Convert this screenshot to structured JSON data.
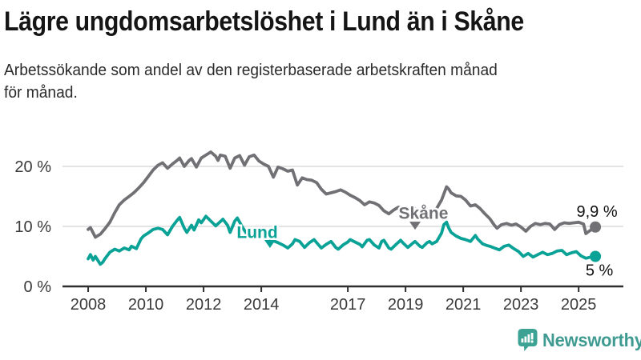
{
  "header": {
    "title": "Lägre ungdomsarbetslöshet i Lund än i Skåne",
    "subtitle_lines": [
      "Arbetssökande som andel av den registerbaserade arbetskraften månad",
      "för månad."
    ]
  },
  "footer": {
    "brand": "Newsworthy",
    "logo_icon": "newsworthy-chart-bubble-icon",
    "icon_color": "#3ba294",
    "brand_color": "#3f9a91"
  },
  "colors": {
    "skane_line": "#707075",
    "lund_line": "#0aa296",
    "gridline": "#dcdcdc",
    "axis": "#2e2e2e",
    "tick_text": "#3a3a3a"
  },
  "chart_data": {
    "type": "line",
    "title": "Lägre ungdomsarbetslöshet i Lund än i Skåne",
    "xlabel": "",
    "ylabel": "",
    "grid": "horizontal",
    "legend_position": "inline-labels",
    "x_axis": {
      "range": [
        2007.11,
        2026.55
      ],
      "tick_values": [
        2008,
        2010,
        2012,
        2014,
        2017,
        2019,
        2021,
        2023,
        2025
      ],
      "tick_labels": [
        "2008",
        "2010",
        "2012",
        "2014",
        "2017",
        "2019",
        "2021",
        "2023",
        "2025"
      ]
    },
    "y_axis": {
      "unit": "%",
      "range": [
        0,
        25
      ],
      "tick_values": [
        0,
        10,
        20
      ],
      "tick_labels": [
        "0 %",
        "10 %",
        "20 %"
      ]
    },
    "series": [
      {
        "id": "skane",
        "name": "Skåne",
        "color": "#707075",
        "end_label": "9,9 %",
        "end_value": 9.9,
        "end_label_position": "above",
        "annotation": {
          "text": "Skåne",
          "text_year": 2019.62,
          "text_value": 11.3,
          "caret_year": 2019.33,
          "caret_tip_value": 9.45
        },
        "points": [
          [
            2008.0,
            9.5
          ],
          [
            2008.08,
            9.8
          ],
          [
            2008.25,
            8.2
          ],
          [
            2008.42,
            8.7
          ],
          [
            2008.58,
            9.6
          ],
          [
            2008.75,
            10.7
          ],
          [
            2008.92,
            12.3
          ],
          [
            2009.08,
            13.6
          ],
          [
            2009.25,
            14.4
          ],
          [
            2009.42,
            15.0
          ],
          [
            2009.58,
            15.6
          ],
          [
            2009.75,
            16.4
          ],
          [
            2009.92,
            17.3
          ],
          [
            2010.08,
            18.3
          ],
          [
            2010.25,
            19.4
          ],
          [
            2010.42,
            20.2
          ],
          [
            2010.58,
            20.6
          ],
          [
            2010.75,
            19.7
          ],
          [
            2010.92,
            20.4
          ],
          [
            2011.08,
            21.0
          ],
          [
            2011.17,
            21.4
          ],
          [
            2011.33,
            20.0
          ],
          [
            2011.5,
            21.0
          ],
          [
            2011.58,
            21.3
          ],
          [
            2011.75,
            19.9
          ],
          [
            2011.92,
            21.4
          ],
          [
            2012.08,
            21.9
          ],
          [
            2012.25,
            22.4
          ],
          [
            2012.42,
            21.7
          ],
          [
            2012.5,
            21.0
          ],
          [
            2012.58,
            21.9
          ],
          [
            2012.75,
            21.7
          ],
          [
            2012.92,
            19.7
          ],
          [
            2013.08,
            21.4
          ],
          [
            2013.25,
            21.8
          ],
          [
            2013.42,
            20.2
          ],
          [
            2013.58,
            21.6
          ],
          [
            2013.75,
            21.9
          ],
          [
            2013.92,
            20.9
          ],
          [
            2014.08,
            20.4
          ],
          [
            2014.25,
            20.0
          ],
          [
            2014.42,
            18.2
          ],
          [
            2014.58,
            19.9
          ],
          [
            2014.75,
            19.6
          ],
          [
            2014.92,
            19.2
          ],
          [
            2015.08,
            19.4
          ],
          [
            2015.25,
            16.9
          ],
          [
            2015.42,
            18.1
          ],
          [
            2015.58,
            17.8
          ],
          [
            2015.75,
            17.7
          ],
          [
            2015.92,
            17.3
          ],
          [
            2016.08,
            16.2
          ],
          [
            2016.25,
            15.4
          ],
          [
            2016.42,
            15.6
          ],
          [
            2016.58,
            15.8
          ],
          [
            2016.75,
            16.1
          ],
          [
            2016.92,
            15.7
          ],
          [
            2017.08,
            15.2
          ],
          [
            2017.25,
            14.8
          ],
          [
            2017.42,
            14.3
          ],
          [
            2017.58,
            13.6
          ],
          [
            2017.75,
            14.1
          ],
          [
            2017.92,
            13.9
          ],
          [
            2018.08,
            13.5
          ],
          [
            2018.25,
            12.6
          ],
          [
            2018.42,
            12.1
          ],
          [
            2018.58,
            12.7
          ],
          [
            2018.75,
            13.2
          ],
          [
            2018.92,
            13.0
          ],
          [
            2019.08,
            12.8
          ],
          [
            2019.25,
            13.2
          ],
          [
            2019.42,
            12.7
          ],
          [
            2019.58,
            13.0
          ],
          [
            2019.75,
            12.8
          ],
          [
            2019.92,
            12.6
          ],
          [
            2020.08,
            13.0
          ],
          [
            2020.25,
            14.4
          ],
          [
            2020.42,
            16.6
          ],
          [
            2020.5,
            16.2
          ],
          [
            2020.58,
            15.6
          ],
          [
            2020.75,
            15.1
          ],
          [
            2020.92,
            15.0
          ],
          [
            2021.08,
            14.4
          ],
          [
            2021.25,
            13.4
          ],
          [
            2021.42,
            13.6
          ],
          [
            2021.58,
            13.0
          ],
          [
            2021.75,
            12.1
          ],
          [
            2021.92,
            11.3
          ],
          [
            2022.08,
            10.2
          ],
          [
            2022.17,
            9.7
          ],
          [
            2022.33,
            10.3
          ],
          [
            2022.5,
            10.5
          ],
          [
            2022.67,
            10.2
          ],
          [
            2022.83,
            10.4
          ],
          [
            2023.0,
            9.9
          ],
          [
            2023.17,
            9.2
          ],
          [
            2023.33,
            10.0
          ],
          [
            2023.5,
            10.5
          ],
          [
            2023.67,
            10.3
          ],
          [
            2023.83,
            10.5
          ],
          [
            2024.0,
            10.4
          ],
          [
            2024.17,
            9.5
          ],
          [
            2024.33,
            10.3
          ],
          [
            2024.5,
            10.6
          ],
          [
            2024.67,
            10.5
          ],
          [
            2024.83,
            10.6
          ],
          [
            2025.0,
            10.7
          ],
          [
            2025.17,
            10.4
          ],
          [
            2025.25,
            8.8
          ],
          [
            2025.42,
            9.4
          ],
          [
            2025.58,
            9.9
          ]
        ]
      },
      {
        "id": "lund",
        "name": "Lund",
        "color": "#0aa296",
        "end_label": "5 %",
        "end_value": 5.0,
        "end_label_position": "below",
        "annotation": {
          "text": "Lund",
          "text_year": 2013.86,
          "text_value": 8.1,
          "caret_year": 2014.3,
          "caret_tip_value": 6.4
        },
        "points": [
          [
            2008.0,
            4.6
          ],
          [
            2008.08,
            5.3
          ],
          [
            2008.17,
            4.4
          ],
          [
            2008.25,
            5.0
          ],
          [
            2008.42,
            3.7
          ],
          [
            2008.5,
            4.0
          ],
          [
            2008.58,
            4.6
          ],
          [
            2008.75,
            5.7
          ],
          [
            2008.92,
            6.2
          ],
          [
            2009.08,
            5.9
          ],
          [
            2009.25,
            6.4
          ],
          [
            2009.42,
            6.1
          ],
          [
            2009.5,
            6.7
          ],
          [
            2009.67,
            6.3
          ],
          [
            2009.83,
            7.9
          ],
          [
            2009.92,
            8.4
          ],
          [
            2010.08,
            8.9
          ],
          [
            2010.25,
            9.5
          ],
          [
            2010.42,
            9.7
          ],
          [
            2010.58,
            9.5
          ],
          [
            2010.75,
            8.6
          ],
          [
            2010.92,
            10.0
          ],
          [
            2011.08,
            11.0
          ],
          [
            2011.17,
            11.5
          ],
          [
            2011.33,
            9.7
          ],
          [
            2011.42,
            9.0
          ],
          [
            2011.58,
            10.2
          ],
          [
            2011.67,
            9.4
          ],
          [
            2011.83,
            11.1
          ],
          [
            2011.92,
            10.6
          ],
          [
            2012.08,
            11.7
          ],
          [
            2012.25,
            10.9
          ],
          [
            2012.42,
            10.1
          ],
          [
            2012.58,
            10.8
          ],
          [
            2012.67,
            11.2
          ],
          [
            2012.83,
            10.2
          ],
          [
            2012.92,
            9.0
          ],
          [
            2013.08,
            10.9
          ],
          [
            2013.17,
            11.4
          ],
          [
            2013.33,
            10.0
          ],
          [
            2013.5,
            8.7
          ],
          [
            2013.58,
            9.5
          ],
          [
            2013.75,
            9.3
          ],
          [
            2013.92,
            8.6
          ],
          [
            2014.08,
            8.5
          ],
          [
            2014.25,
            8.2
          ],
          [
            2014.42,
            7.6
          ],
          [
            2014.58,
            7.3
          ],
          [
            2014.75,
            6.9
          ],
          [
            2014.92,
            6.4
          ],
          [
            2015.08,
            7.1
          ],
          [
            2015.17,
            7.8
          ],
          [
            2015.33,
            7.5
          ],
          [
            2015.5,
            6.5
          ],
          [
            2015.67,
            7.3
          ],
          [
            2015.83,
            7.8
          ],
          [
            2015.92,
            7.3
          ],
          [
            2016.08,
            6.4
          ],
          [
            2016.25,
            7.0
          ],
          [
            2016.42,
            7.5
          ],
          [
            2016.58,
            6.5
          ],
          [
            2016.67,
            6.2
          ],
          [
            2016.83,
            6.9
          ],
          [
            2017.0,
            7.4
          ],
          [
            2017.08,
            7.8
          ],
          [
            2017.25,
            7.4
          ],
          [
            2017.42,
            7.0
          ],
          [
            2017.5,
            6.6
          ],
          [
            2017.67,
            7.7
          ],
          [
            2017.75,
            7.8
          ],
          [
            2017.92,
            6.9
          ],
          [
            2018.08,
            6.4
          ],
          [
            2018.17,
            7.5
          ],
          [
            2018.25,
            7.7
          ],
          [
            2018.42,
            6.4
          ],
          [
            2018.5,
            6.2
          ],
          [
            2018.67,
            7.0
          ],
          [
            2018.83,
            7.7
          ],
          [
            2018.92,
            7.2
          ],
          [
            2019.08,
            6.5
          ],
          [
            2019.25,
            7.2
          ],
          [
            2019.33,
            7.5
          ],
          [
            2019.5,
            6.7
          ],
          [
            2019.58,
            6.5
          ],
          [
            2019.75,
            7.3
          ],
          [
            2019.83,
            7.5
          ],
          [
            2019.92,
            7.1
          ],
          [
            2020.08,
            7.5
          ],
          [
            2020.25,
            8.9
          ],
          [
            2020.33,
            10.3
          ],
          [
            2020.42,
            10.7
          ],
          [
            2020.5,
            9.7
          ],
          [
            2020.58,
            9.0
          ],
          [
            2020.75,
            8.4
          ],
          [
            2020.92,
            8.0
          ],
          [
            2021.08,
            7.8
          ],
          [
            2021.25,
            7.5
          ],
          [
            2021.42,
            8.5
          ],
          [
            2021.5,
            7.9
          ],
          [
            2021.67,
            7.1
          ],
          [
            2021.83,
            6.8
          ],
          [
            2021.92,
            6.7
          ],
          [
            2022.08,
            6.4
          ],
          [
            2022.25,
            6.1
          ],
          [
            2022.42,
            6.7
          ],
          [
            2022.58,
            6.9
          ],
          [
            2022.75,
            6.3
          ],
          [
            2022.92,
            5.8
          ],
          [
            2023.08,
            5.0
          ],
          [
            2023.25,
            5.5
          ],
          [
            2023.42,
            4.9
          ],
          [
            2023.58,
            5.3
          ],
          [
            2023.75,
            5.7
          ],
          [
            2023.92,
            5.3
          ],
          [
            2024.08,
            5.5
          ],
          [
            2024.25,
            5.9
          ],
          [
            2024.42,
            6.0
          ],
          [
            2024.58,
            5.3
          ],
          [
            2024.75,
            5.6
          ],
          [
            2024.92,
            5.8
          ],
          [
            2025.08,
            5.1
          ],
          [
            2025.25,
            4.7
          ],
          [
            2025.42,
            4.9
          ],
          [
            2025.58,
            5.0
          ]
        ]
      }
    ]
  }
}
